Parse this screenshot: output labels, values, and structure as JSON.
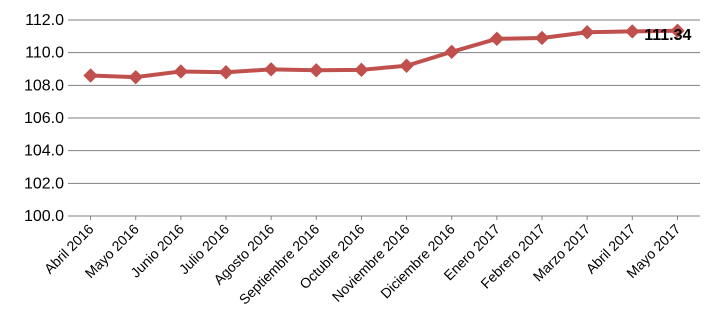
{
  "chart_data": {
    "type": "line",
    "categories": [
      "Abril 2016",
      "Mayo 2016",
      "Junio 2016",
      "Julio 2016",
      "Agosto 2016",
      "Septiembre 2016",
      "Octubre 2016",
      "Noviembre 2016",
      "Diciembre 2016",
      "Enero 2017",
      "Febrero 2017",
      "Marzo 2017",
      "Abril 2017",
      "Mayo 2017"
    ],
    "series": [
      {
        "values": [
          108.6,
          108.5,
          108.85,
          108.8,
          108.98,
          108.92,
          108.95,
          109.2,
          110.05,
          110.85,
          110.9,
          111.25,
          111.3,
          111.34
        ],
        "color": "#c0504d"
      }
    ],
    "yticks": [
      "100.0",
      "102.0",
      "104.0",
      "106.0",
      "108.0",
      "110.0",
      "112.0"
    ],
    "ylim": [
      100,
      112
    ],
    "grid": true,
    "data_label": {
      "index": 13,
      "text": "111.34"
    },
    "title": "",
    "xlabel": "",
    "ylabel": ""
  }
}
